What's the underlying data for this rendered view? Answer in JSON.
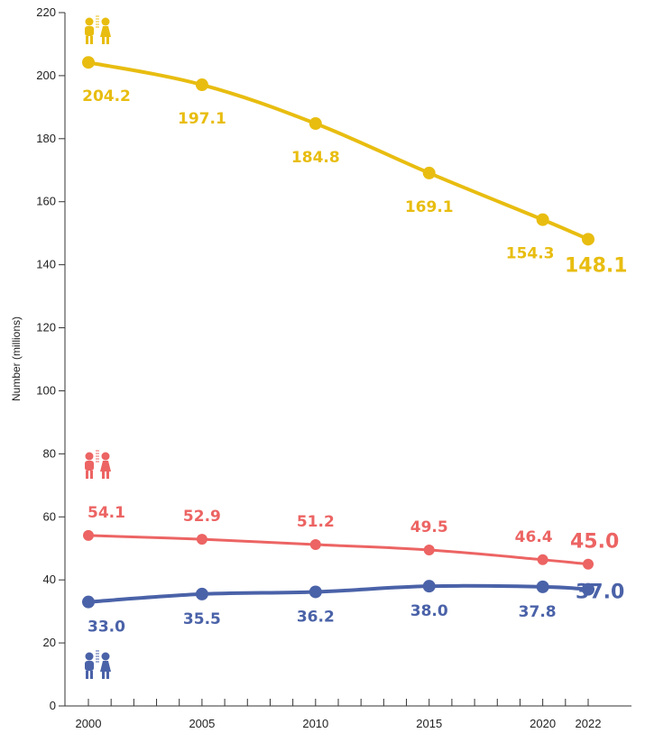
{
  "chart_data": {
    "type": "line",
    "ylabel": "Number (millions)",
    "xlabel": "",
    "ylim": [
      0,
      220
    ],
    "yticks": [
      0,
      20,
      40,
      60,
      80,
      100,
      120,
      140,
      160,
      180,
      200,
      220
    ],
    "xlim": [
      2000,
      2022
    ],
    "xtick_labels": [
      "2000",
      "2005",
      "2010",
      "2015",
      "2020",
      "2022"
    ],
    "x": [
      2000,
      2005,
      2010,
      2015,
      2020,
      2022
    ],
    "grid": false,
    "series": [
      {
        "values": [
          204.2,
          197.1,
          184.8,
          169.1,
          154.3,
          148.1
        ],
        "labels": [
          "204.2",
          "197.1",
          "184.8",
          "169.1",
          "154.3",
          "148.1"
        ],
        "color": "#E8BD10",
        "icon": "children-icon-yellow"
      },
      {
        "values": [
          54.1,
          52.9,
          51.2,
          49.5,
          46.4,
          45.0
        ],
        "labels": [
          "54.1",
          "52.9",
          "51.2",
          "49.5",
          "46.4",
          "45.0"
        ],
        "color": "#EC6463",
        "icon": "children-icon-red"
      },
      {
        "values": [
          33.0,
          35.5,
          36.2,
          38.0,
          37.8,
          37.0
        ],
        "labels": [
          "33.0",
          "35.5",
          "36.2",
          "38.0",
          "37.8",
          "37.0"
        ],
        "color": "#4A62A8",
        "icon": "children-icon-blue"
      }
    ]
  }
}
